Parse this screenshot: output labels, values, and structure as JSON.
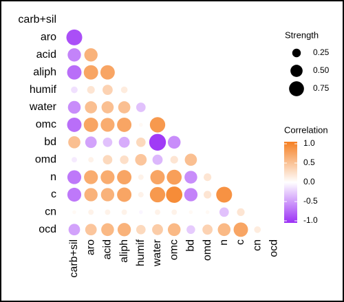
{
  "chart_data": {
    "type": "correlation",
    "variables": [
      "carb+sil",
      "aro",
      "acid",
      "aliph",
      "humif",
      "water",
      "omc",
      "bd",
      "omd",
      "n",
      "c",
      "cn",
      "ocd"
    ],
    "values": [
      [],
      [
        -0.85
      ],
      [
        -0.6,
        0.6
      ],
      [
        -0.7,
        0.7,
        0.7
      ],
      [
        -0.15,
        0.2,
        0.35,
        0.15
      ],
      [
        -0.55,
        0.5,
        0.5,
        0.5,
        -0.3
      ],
      [
        -0.7,
        0.7,
        0.65,
        0.7,
        0.05,
        0.8
      ],
      [
        0.5,
        -0.45,
        -0.3,
        -0.4,
        0.3,
        -0.95,
        -0.55
      ],
      [
        -0.1,
        0.1,
        0.3,
        0.25,
        0.45,
        -0.35,
        0.2,
        0.5
      ],
      [
        -0.65,
        0.65,
        0.65,
        0.7,
        0.1,
        0.7,
        0.75,
        -0.55,
        0.2
      ],
      [
        -0.65,
        0.6,
        0.6,
        0.7,
        0.1,
        0.8,
        0.9,
        -0.6,
        0.2,
        0.85
      ],
      [
        0.05,
        0.1,
        0.1,
        0.1,
        -0.05,
        0.1,
        0.1,
        0.05,
        0.05,
        -0.3,
        0.2
      ],
      [
        -0.45,
        0.45,
        0.55,
        0.6,
        0.3,
        0.4,
        0.55,
        -0.25,
        0.35,
        0.55,
        0.7,
        0.15
      ]
    ],
    "size_legend_title": "Strength",
    "size_ticks": [
      0.25,
      {
        "value": 0.5,
        "label": "0.50"
      },
      0.75
    ],
    "color_legend_title": "Correlation",
    "color_ticks": [
      {
        "value": 1,
        "label": "1.0"
      },
      0.5,
      {
        "value": 0,
        "label": "0.0"
      },
      -0.5,
      {
        "value": -1,
        "label": "-1.0"
      }
    ],
    "clim": [
      -1,
      1
    ],
    "colors": {
      "low": "#9b30f5",
      "mid": "#ffffff",
      "high": "#f57f22"
    }
  }
}
